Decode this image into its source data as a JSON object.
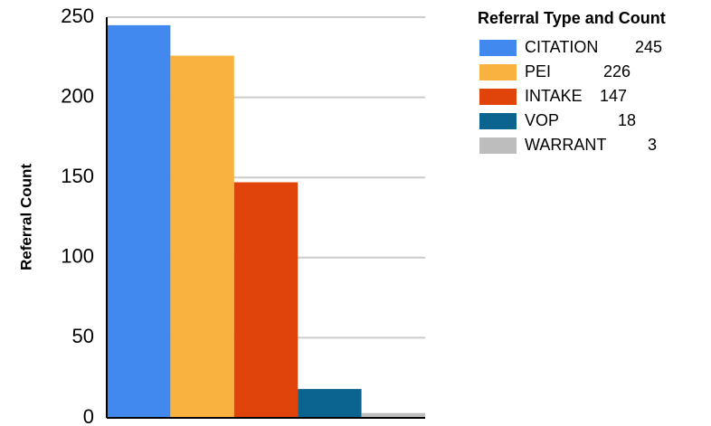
{
  "chart_data": {
    "type": "bar",
    "y_label": "Referral Count",
    "legend_title": "Referral Type and Count",
    "categories": [
      "CITATION",
      "PEI",
      "INTAKE",
      "VOP",
      "WARRANT"
    ],
    "values": [
      245,
      226,
      147,
      18,
      3
    ],
    "colors": [
      "#4189ee",
      "#f9b13f",
      "#e0440b",
      "#0b6390",
      "#bdbdbd"
    ],
    "ylim": [
      0,
      250
    ],
    "yticks": [
      0,
      50,
      100,
      150,
      200,
      250
    ],
    "grid": true,
    "legend": "top-right"
  }
}
